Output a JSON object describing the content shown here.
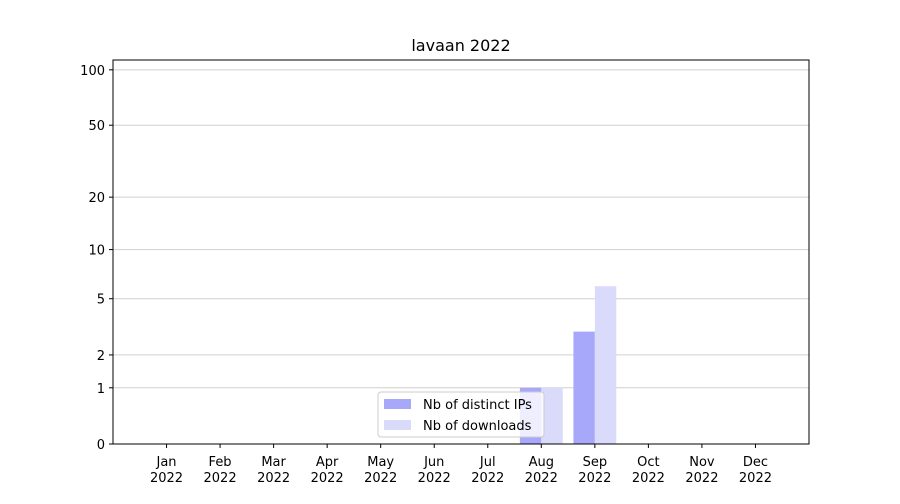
{
  "chart_data": {
    "type": "bar",
    "title": "lavaan 2022",
    "categories": [
      "Jan 2022",
      "Feb 2022",
      "Mar 2022",
      "Apr 2022",
      "May 2022",
      "Jun 2022",
      "Jul 2022",
      "Aug 2022",
      "Sep 2022",
      "Oct 2022",
      "Nov 2022",
      "Dec 2022"
    ],
    "series": [
      {
        "name": "Nb of distinct IPs",
        "color": "#a8a8fa",
        "values": [
          0,
          0,
          0,
          0,
          0,
          0,
          0,
          1,
          3,
          0,
          0,
          0
        ]
      },
      {
        "name": "Nb of downloads",
        "color": "#dadafb",
        "values": [
          0,
          0,
          0,
          0,
          0,
          0,
          0,
          1,
          6,
          0,
          0,
          0
        ]
      }
    ],
    "yscale": "symlog",
    "ylim": [
      0,
      113
    ],
    "yticks": [
      0,
      1,
      2,
      5,
      10,
      20,
      50,
      100
    ],
    "grid": true,
    "legend": "lower center"
  }
}
